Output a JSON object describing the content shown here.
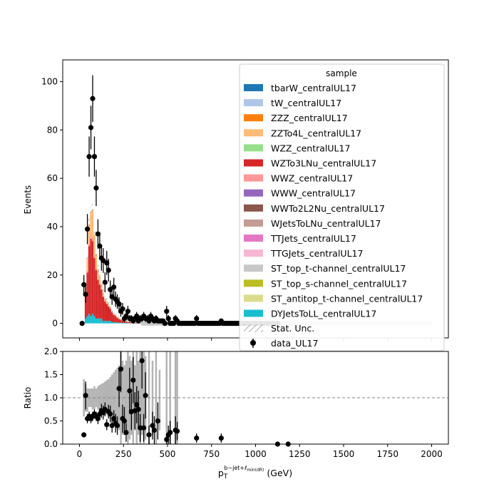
{
  "colors": {
    "tbarW_centralUL17": "#1f77b4",
    "tW_centralUL17": "#aec7e8",
    "ZZZ_centralUL17": "#ff7f0e",
    "ZZTo4L_centralUL17": "#ffbb78",
    "WZZ_centralUL17": "#98df8a",
    "WZTo3LNu_centralUL17": "#d62728",
    "WWZ_centralUL17": "#ff9896",
    "WWW_centralUL17": "#9467bd",
    "WWTo2L2Nu_centralUL17": "#8c564b",
    "WJetsToLNu_centralUL17": "#c49c94",
    "TTJets_centralUL17": "#e377c2",
    "TTGJets_centralUL17": "#f7b6d2",
    "ST_top_t-channel_centralUL17": "#c7c7c7",
    "ST_top_s-channel_centralUL17": "#bcbd22",
    "ST_antitop_t-channel_centralUL17": "#dbdb8d",
    "DYJetsToLL_centralUL17": "#17becf",
    "unc": "#888888",
    "data": "#000000",
    "ratio_band": "#b3b3b3"
  },
  "chart_data": [
    {
      "type": "bar",
      "stacked": true,
      "panel": "main",
      "ylabel": "Events",
      "xlabel": "",
      "ylim": [
        -6,
        109
      ],
      "xlim": [
        -95,
        2095
      ],
      "yticks": [
        0,
        20,
        40,
        60,
        80,
        100
      ],
      "legend_title": "sample",
      "legend_position": "upper-right",
      "legend_entries": [
        "tbarW_centralUL17",
        "tW_centralUL17",
        "ZZZ_centralUL17",
        "ZZTo4L_centralUL17",
        "WZZ_centralUL17",
        "WZTo3LNu_centralUL17",
        "WWZ_centralUL17",
        "WWW_centralUL17",
        "WWTo2L2Nu_centralUL17",
        "WJetsToLNu_centralUL17",
        "TTJets_centralUL17",
        "TTGJets_centralUL17",
        "ST_top_t-channel_centralUL17",
        "ST_top_s-channel_centralUL17",
        "ST_antitop_t-channel_centralUL17",
        "DYJetsToLL_centralUL17"
      ],
      "unc_label": "Stat. Unc.",
      "data_label": "data_UL17",
      "bin_width": 10,
      "x": [
        35,
        45,
        55,
        65,
        75,
        85,
        95,
        105,
        115,
        125,
        135,
        145,
        155,
        165,
        175,
        185,
        195,
        205,
        215,
        225,
        235,
        245,
        255,
        265,
        275,
        285,
        295,
        305,
        315,
        325,
        335,
        345
      ],
      "series": [
        {
          "name": "DYJetsToLL_centralUL17",
          "values": [
            2,
            3,
            4,
            3,
            4,
            3,
            2,
            2,
            2,
            2,
            1,
            1,
            1,
            1,
            1,
            0.5,
            0.5,
            0.5,
            0.3,
            0.3,
            0.3,
            0.2,
            0.2,
            0.2,
            0.1,
            0.1,
            0.1,
            0.1,
            0.1,
            0.1,
            0.1,
            0.1
          ]
        },
        {
          "name": "WZTo3LNu_centralUL17",
          "values": [
            10,
            18,
            28,
            32,
            30,
            24,
            20,
            16,
            14,
            12,
            10,
            8,
            7,
            6,
            5,
            4,
            3,
            2.5,
            2,
            1.5,
            1.2,
            1,
            0.8,
            0.6,
            0.5,
            0.4,
            0.3,
            0.3,
            0.2,
            0.2,
            0.2,
            0.1
          ]
        },
        {
          "name": "WWZ_centralUL17",
          "values": [
            0.5,
            0.8,
            1,
            1,
            1,
            0.8,
            0.6,
            0.5,
            0.4,
            0.3,
            0.3,
            0.2,
            0.2,
            0.2,
            0.1,
            0.1,
            0.1,
            0.1,
            0.1,
            0.1,
            0,
            0,
            0,
            0,
            0,
            0,
            0,
            0,
            0,
            0,
            0,
            0
          ]
        },
        {
          "name": "ZZTo4L_centralUL17",
          "values": [
            3,
            5,
            8,
            10,
            12,
            9,
            6,
            4,
            3,
            2,
            1.5,
            1.2,
            1,
            0.8,
            0.6,
            0.5,
            0.4,
            0.3,
            0.3,
            0.2,
            0.2,
            0.1,
            0.1,
            0.1,
            0.1,
            0.1,
            0.1,
            0,
            0,
            0,
            0,
            0
          ]
        }
      ],
      "data_points": [
        {
          "x": 15,
          "y": 0
        },
        {
          "x": 25,
          "y": 16
        },
        {
          "x": 35,
          "y": 12
        },
        {
          "x": 45,
          "y": 39
        },
        {
          "x": 55,
          "y": 69
        },
        {
          "x": 65,
          "y": 81
        },
        {
          "x": 75,
          "y": 93
        },
        {
          "x": 85,
          "y": 69
        },
        {
          "x": 95,
          "y": 56
        },
        {
          "x": 105,
          "y": 37
        },
        {
          "x": 115,
          "y": 32
        },
        {
          "x": 125,
          "y": 27
        },
        {
          "x": 135,
          "y": 26
        },
        {
          "x": 145,
          "y": 17
        },
        {
          "x": 155,
          "y": 25
        },
        {
          "x": 165,
          "y": 22
        },
        {
          "x": 175,
          "y": 14
        },
        {
          "x": 185,
          "y": 11
        },
        {
          "x": 195,
          "y": 15
        },
        {
          "x": 205,
          "y": 10
        },
        {
          "x": 215,
          "y": 9
        },
        {
          "x": 225,
          "y": 8
        },
        {
          "x": 235,
          "y": 5
        },
        {
          "x": 245,
          "y": 6
        },
        {
          "x": 255,
          "y": 2
        },
        {
          "x": 265,
          "y": 3
        },
        {
          "x": 275,
          "y": 5
        },
        {
          "x": 285,
          "y": 2
        },
        {
          "x": 295,
          "y": 2
        },
        {
          "x": 305,
          "y": 1
        },
        {
          "x": 315,
          "y": 2
        },
        {
          "x": 325,
          "y": 3
        },
        {
          "x": 335,
          "y": 1
        },
        {
          "x": 345,
          "y": 2
        },
        {
          "x": 355,
          "y": 2
        },
        {
          "x": 365,
          "y": 3
        },
        {
          "x": 375,
          "y": 2
        },
        {
          "x": 385,
          "y": 2
        },
        {
          "x": 395,
          "y": 1
        },
        {
          "x": 405,
          "y": 3
        },
        {
          "x": 415,
          "y": 2
        },
        {
          "x": 425,
          "y": 1
        },
        {
          "x": 435,
          "y": 2
        },
        {
          "x": 445,
          "y": 1
        },
        {
          "x": 455,
          "y": 1
        },
        {
          "x": 465,
          "y": 1
        },
        {
          "x": 475,
          "y": 1
        },
        {
          "x": 485,
          "y": 0
        },
        {
          "x": 495,
          "y": 5
        },
        {
          "x": 505,
          "y": 2
        },
        {
          "x": 515,
          "y": 0
        },
        {
          "x": 525,
          "y": 0
        },
        {
          "x": 535,
          "y": 0
        },
        {
          "x": 545,
          "y": 2
        },
        {
          "x": 555,
          "y": 1
        },
        {
          "x": 565,
          "y": 0
        },
        {
          "x": 575,
          "y": 0
        },
        {
          "x": 585,
          "y": 0
        },
        {
          "x": 595,
          "y": 0
        },
        {
          "x": 605,
          "y": 0
        },
        {
          "x": 615,
          "y": 0
        },
        {
          "x": 625,
          "y": 0
        },
        {
          "x": 635,
          "y": 0
        },
        {
          "x": 645,
          "y": 0
        },
        {
          "x": 655,
          "y": 0
        },
        {
          "x": 665,
          "y": 2
        },
        {
          "x": 675,
          "y": 0
        },
        {
          "x": 685,
          "y": 0
        },
        {
          "x": 695,
          "y": 0
        },
        {
          "x": 705,
          "y": 0
        },
        {
          "x": 715,
          "y": 0
        },
        {
          "x": 725,
          "y": 0
        },
        {
          "x": 735,
          "y": 0
        },
        {
          "x": 745,
          "y": 0
        },
        {
          "x": 755,
          "y": 0
        },
        {
          "x": 765,
          "y": 0
        },
        {
          "x": 775,
          "y": 0
        },
        {
          "x": 785,
          "y": 0
        },
        {
          "x": 795,
          "y": 0
        },
        {
          "x": 805,
          "y": 1
        },
        {
          "x": 815,
          "y": 0
        },
        {
          "x": 825,
          "y": 0
        },
        {
          "x": 835,
          "y": 0
        },
        {
          "x": 845,
          "y": 0
        },
        {
          "x": 855,
          "y": 0
        },
        {
          "x": 865,
          "y": 0
        },
        {
          "x": 875,
          "y": 0
        },
        {
          "x": 885,
          "y": 0
        },
        {
          "x": 895,
          "y": 0
        },
        {
          "x": 905,
          "y": 0
        },
        {
          "x": 915,
          "y": 0
        },
        {
          "x": 925,
          "y": 0
        },
        {
          "x": 935,
          "y": 0
        },
        {
          "x": 945,
          "y": 0
        },
        {
          "x": 955,
          "y": 0
        },
        {
          "x": 965,
          "y": 0
        },
        {
          "x": 975,
          "y": 0
        },
        {
          "x": 985,
          "y": 0
        },
        {
          "x": 995,
          "y": 0
        },
        {
          "x": 1005,
          "y": 0
        },
        {
          "x": 1015,
          "y": 0
        },
        {
          "x": 1025,
          "y": 0
        },
        {
          "x": 1035,
          "y": 0
        },
        {
          "x": 1045,
          "y": 0
        },
        {
          "x": 1055,
          "y": 0
        },
        {
          "x": 1065,
          "y": 0
        },
        {
          "x": 1075,
          "y": 0
        },
        {
          "x": 1085,
          "y": 0
        },
        {
          "x": 1095,
          "y": 0
        },
        {
          "x": 1105,
          "y": 0
        },
        {
          "x": 1115,
          "y": 0
        },
        {
          "x": 1125,
          "y": 0
        }
      ]
    },
    {
      "type": "scatter",
      "panel": "ratio",
      "ylabel": "Ratio",
      "xlabel": "p_T^{b-jet+ℓ_min(dR)} (GeV)",
      "xlabel_main": "p",
      "xlabel_sub": "T",
      "xlabel_sup": "b−jet+ℓ",
      "xlabel_supsub": "min(dR)",
      "xlabel_unit": "(GeV)",
      "ylim": [
        0,
        2
      ],
      "xlim": [
        -95,
        2095
      ],
      "yticks": [
        "0.0",
        "0.5",
        "1.0",
        "1.5",
        "2.0"
      ],
      "xticks": [
        0,
        250,
        500,
        750,
        1000,
        1250,
        1500,
        1750,
        2000
      ],
      "reference_line": 1.0,
      "unc_band": [
        {
          "x": 25,
          "lo": 0.6,
          "hi": 1.4
        },
        {
          "x": 35,
          "lo": 0.7,
          "hi": 1.3
        },
        {
          "x": 45,
          "lo": 0.7,
          "hi": 1.2
        },
        {
          "x": 55,
          "lo": 0.8,
          "hi": 1.2
        },
        {
          "x": 65,
          "lo": 0.8,
          "hi": 1.2
        },
        {
          "x": 75,
          "lo": 0.75,
          "hi": 1.2
        },
        {
          "x": 85,
          "lo": 0.75,
          "hi": 1.25
        },
        {
          "x": 95,
          "lo": 0.8,
          "hi": 1.2
        },
        {
          "x": 105,
          "lo": 0.75,
          "hi": 1.25
        },
        {
          "x": 115,
          "lo": 0.72,
          "hi": 1.28
        },
        {
          "x": 125,
          "lo": 0.7,
          "hi": 1.3
        },
        {
          "x": 135,
          "lo": 0.68,
          "hi": 1.32
        },
        {
          "x": 145,
          "lo": 0.65,
          "hi": 1.35
        },
        {
          "x": 155,
          "lo": 0.62,
          "hi": 1.38
        },
        {
          "x": 165,
          "lo": 0.6,
          "hi": 1.4
        },
        {
          "x": 175,
          "lo": 0.55,
          "hi": 1.45
        },
        {
          "x": 185,
          "lo": 0.5,
          "hi": 1.5
        },
        {
          "x": 195,
          "lo": 0.45,
          "hi": 1.55
        },
        {
          "x": 205,
          "lo": 0.4,
          "hi": 1.6
        },
        {
          "x": 215,
          "lo": 0.35,
          "hi": 1.65
        },
        {
          "x": 225,
          "lo": 0.3,
          "hi": 1.7
        },
        {
          "x": 235,
          "lo": 0,
          "hi": 2
        },
        {
          "x": 245,
          "lo": 0.2,
          "hi": 1.8
        },
        {
          "x": 255,
          "lo": 0.3,
          "hi": 1.7
        },
        {
          "x": 265,
          "lo": 0.2,
          "hi": 1.8
        },
        {
          "x": 275,
          "lo": 0,
          "hi": 2
        },
        {
          "x": 285,
          "lo": 0.1,
          "hi": 1.9
        },
        {
          "x": 295,
          "lo": 0.2,
          "hi": 1.8
        },
        {
          "x": 305,
          "lo": 0,
          "hi": 2
        },
        {
          "x": 315,
          "lo": 0.3,
          "hi": 1.7
        },
        {
          "x": 325,
          "lo": 0,
          "hi": 2
        },
        {
          "x": 335,
          "lo": 0.2,
          "hi": 1.8
        },
        {
          "x": 345,
          "lo": 0,
          "hi": 2
        },
        {
          "x": 355,
          "lo": 0.2,
          "hi": 1.8
        },
        {
          "x": 365,
          "lo": 0,
          "hi": 2
        },
        {
          "x": 375,
          "lo": 0.1,
          "hi": 1.9
        },
        {
          "x": 395,
          "lo": 0,
          "hi": 2
        },
        {
          "x": 415,
          "lo": 0.2,
          "hi": 1.8
        },
        {
          "x": 435,
          "lo": 0,
          "hi": 2
        },
        {
          "x": 455,
          "lo": 0.3,
          "hi": 1.6
        },
        {
          "x": 495,
          "lo": 0,
          "hi": 2
        },
        {
          "x": 515,
          "lo": 0,
          "hi": 2
        },
        {
          "x": 545,
          "lo": 0,
          "hi": 2
        },
        {
          "x": 555,
          "lo": 0,
          "hi": 2
        }
      ],
      "points": [
        {
          "x": 25,
          "y": 0.2,
          "err": 0.0
        },
        {
          "x": 35,
          "y": 1.05,
          "err": 0.3
        },
        {
          "x": 45,
          "y": 0.55,
          "err": 0.1
        },
        {
          "x": 55,
          "y": 0.6,
          "err": 0.1
        },
        {
          "x": 65,
          "y": 0.55,
          "err": 0.1
        },
        {
          "x": 75,
          "y": 0.6,
          "err": 0.1
        },
        {
          "x": 85,
          "y": 0.65,
          "err": 0.1
        },
        {
          "x": 95,
          "y": 0.6,
          "err": 0.1
        },
        {
          "x": 105,
          "y": 0.55,
          "err": 0.12
        },
        {
          "x": 115,
          "y": 0.65,
          "err": 0.12
        },
        {
          "x": 125,
          "y": 0.72,
          "err": 0.15
        },
        {
          "x": 135,
          "y": 0.68,
          "err": 0.15
        },
        {
          "x": 145,
          "y": 0.75,
          "err": 0.15
        },
        {
          "x": 155,
          "y": 0.42,
          "err": 0.12
        },
        {
          "x": 165,
          "y": 0.7,
          "err": 0.15
        },
        {
          "x": 175,
          "y": 0.65,
          "err": 0.18
        },
        {
          "x": 185,
          "y": 0.4,
          "err": 0.15
        },
        {
          "x": 195,
          "y": 0.55,
          "err": 0.18
        },
        {
          "x": 205,
          "y": 0.45,
          "err": 0.2
        },
        {
          "x": 215,
          "y": 0.4,
          "err": 0.2
        },
        {
          "x": 225,
          "y": 1.2,
          "err": 0.4
        },
        {
          "x": 235,
          "y": 1.62,
          "err": 0.5
        },
        {
          "x": 245,
          "y": 0.55,
          "err": 0.3
        },
        {
          "x": 255,
          "y": 0.5,
          "err": 0.3
        },
        {
          "x": 265,
          "y": 0.25,
          "err": 0.2
        },
        {
          "x": 285,
          "y": 1.15,
          "err": 0.5
        },
        {
          "x": 295,
          "y": 0.7,
          "err": 0.4
        },
        {
          "x": 305,
          "y": 1.38,
          "err": 0.5
        },
        {
          "x": 315,
          "y": 0.72,
          "err": 0.4
        },
        {
          "x": 325,
          "y": 0.85,
          "err": 0.4
        },
        {
          "x": 335,
          "y": 0.75,
          "err": 0.4
        },
        {
          "x": 345,
          "y": 0.35,
          "err": 0.3
        },
        {
          "x": 355,
          "y": 1.8,
          "err": 0.6
        },
        {
          "x": 365,
          "y": 0.35,
          "err": 0.3
        },
        {
          "x": 375,
          "y": 1.05,
          "err": 0.5
        },
        {
          "x": 395,
          "y": 0.2,
          "err": 0.2
        },
        {
          "x": 415,
          "y": 0.4,
          "err": 0.3
        },
        {
          "x": 425,
          "y": 0.3,
          "err": 0.3
        },
        {
          "x": 445,
          "y": 0.5,
          "err": 0.4
        },
        {
          "x": 495,
          "y": 0.1,
          "err": 0.1
        },
        {
          "x": 505,
          "y": 0.2,
          "err": 0.2
        },
        {
          "x": 515,
          "y": 0.25,
          "err": 0.25
        },
        {
          "x": 545,
          "y": 0.3,
          "err": 0.3
        },
        {
          "x": 555,
          "y": 0.28,
          "err": 0.2
        },
        {
          "x": 665,
          "y": 0.13,
          "err": 0.1
        },
        {
          "x": 805,
          "y": 0.13,
          "err": 0.1
        },
        {
          "x": 1125,
          "y": 0.0,
          "err": 0.0
        },
        {
          "x": 1185,
          "y": 0.0,
          "err": 0.0
        }
      ]
    }
  ]
}
